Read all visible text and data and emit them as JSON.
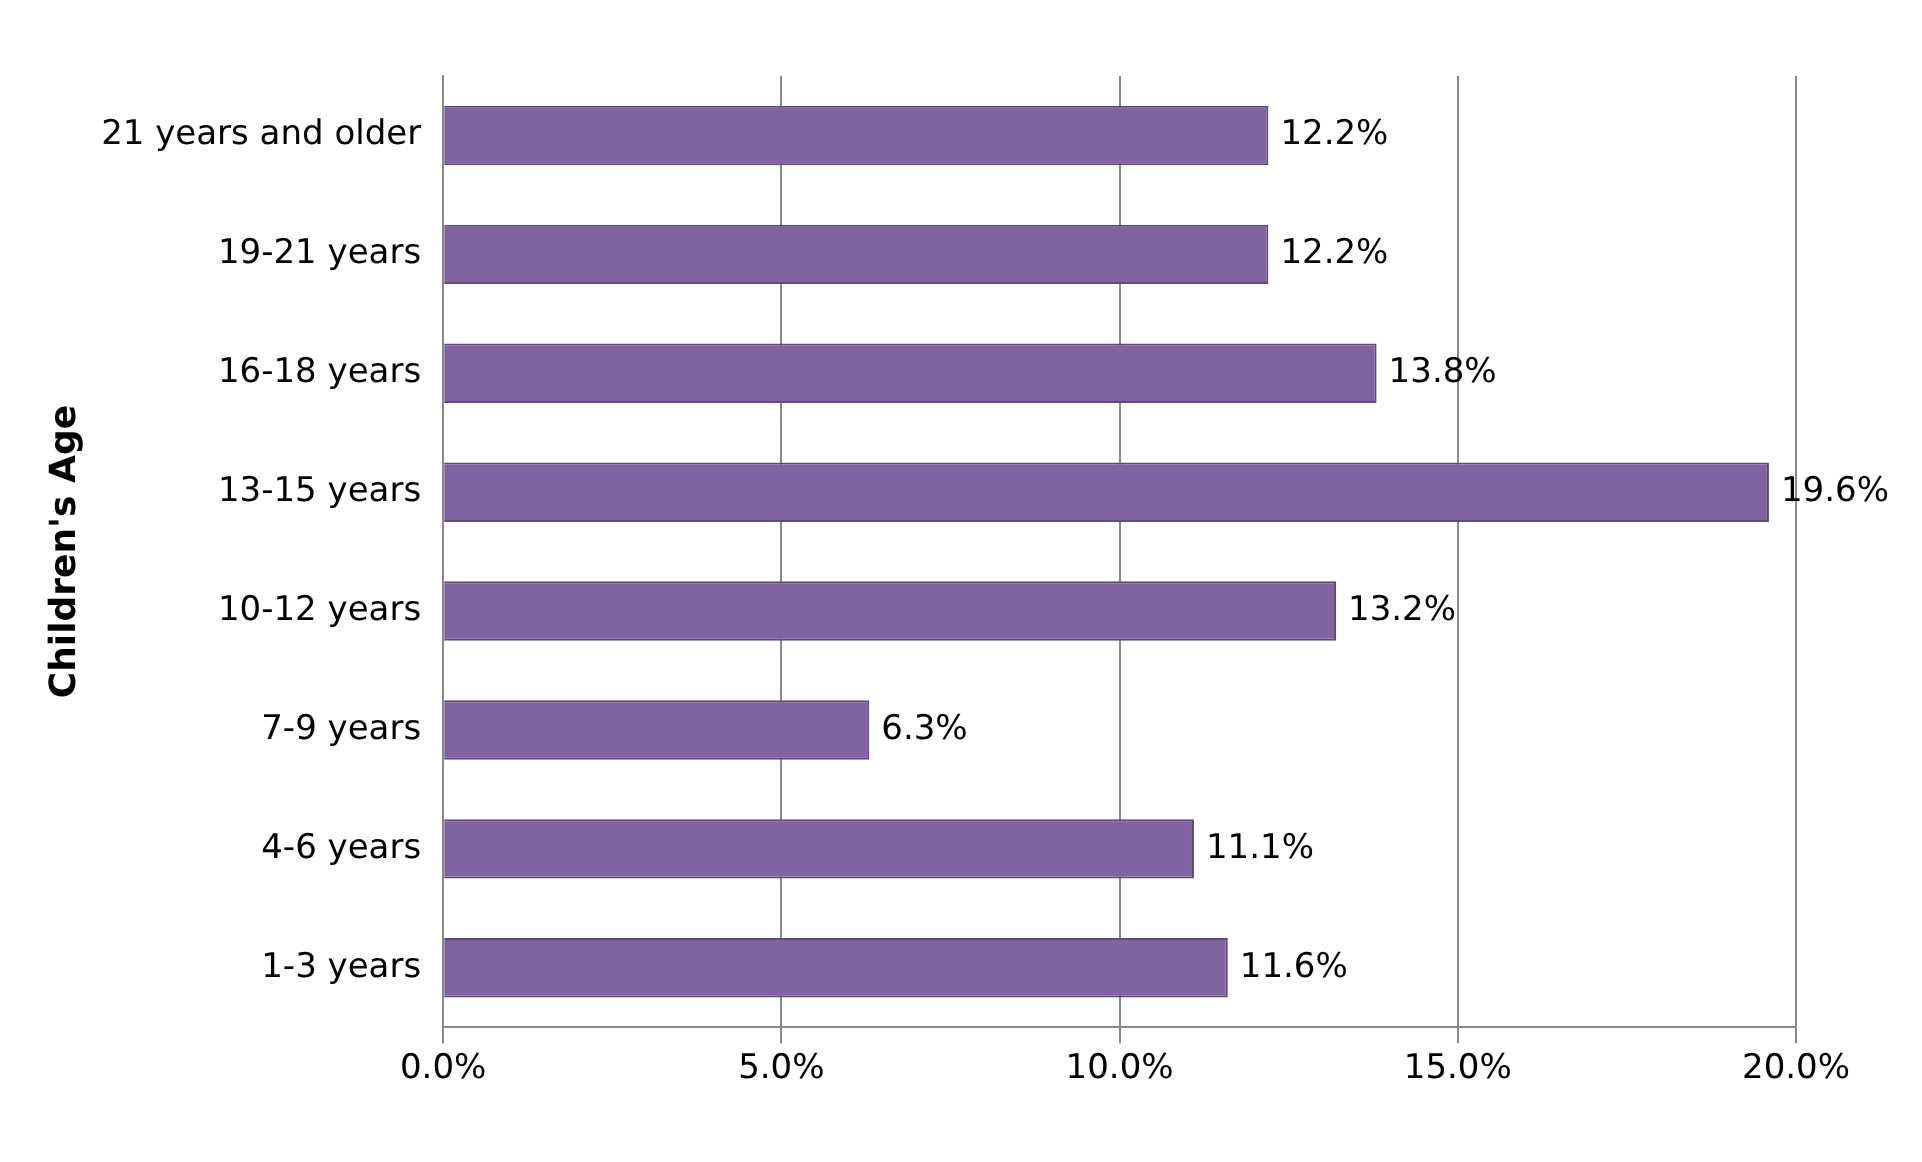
{
  "chart_data": {
    "type": "bar",
    "orientation": "horizontal",
    "ylabel": "Children's Age",
    "categories": [
      "21 years and older",
      "19-21 years",
      "16-18 years",
      "13-15 years",
      "10-12 years",
      "7-9 years",
      "4-6 years",
      "1-3 years"
    ],
    "values": [
      12.2,
      12.2,
      13.8,
      19.6,
      13.2,
      6.3,
      11.1,
      11.6
    ],
    "value_labels": [
      "12.2%",
      "12.2%",
      "13.8%",
      "19.6%",
      "13.2%",
      "6.3%",
      "11.1%",
      "11.6%"
    ],
    "color": "#8064a2",
    "xlim": [
      0,
      20
    ],
    "xticks": [
      {
        "value": 0,
        "label": "0.0%"
      },
      {
        "value": 5,
        "label": "5.0%"
      },
      {
        "value": 10,
        "label": "10.0%"
      },
      {
        "value": 15,
        "label": "15.0%"
      },
      {
        "value": 20,
        "label": "20.0%"
      }
    ],
    "grid": "x"
  }
}
